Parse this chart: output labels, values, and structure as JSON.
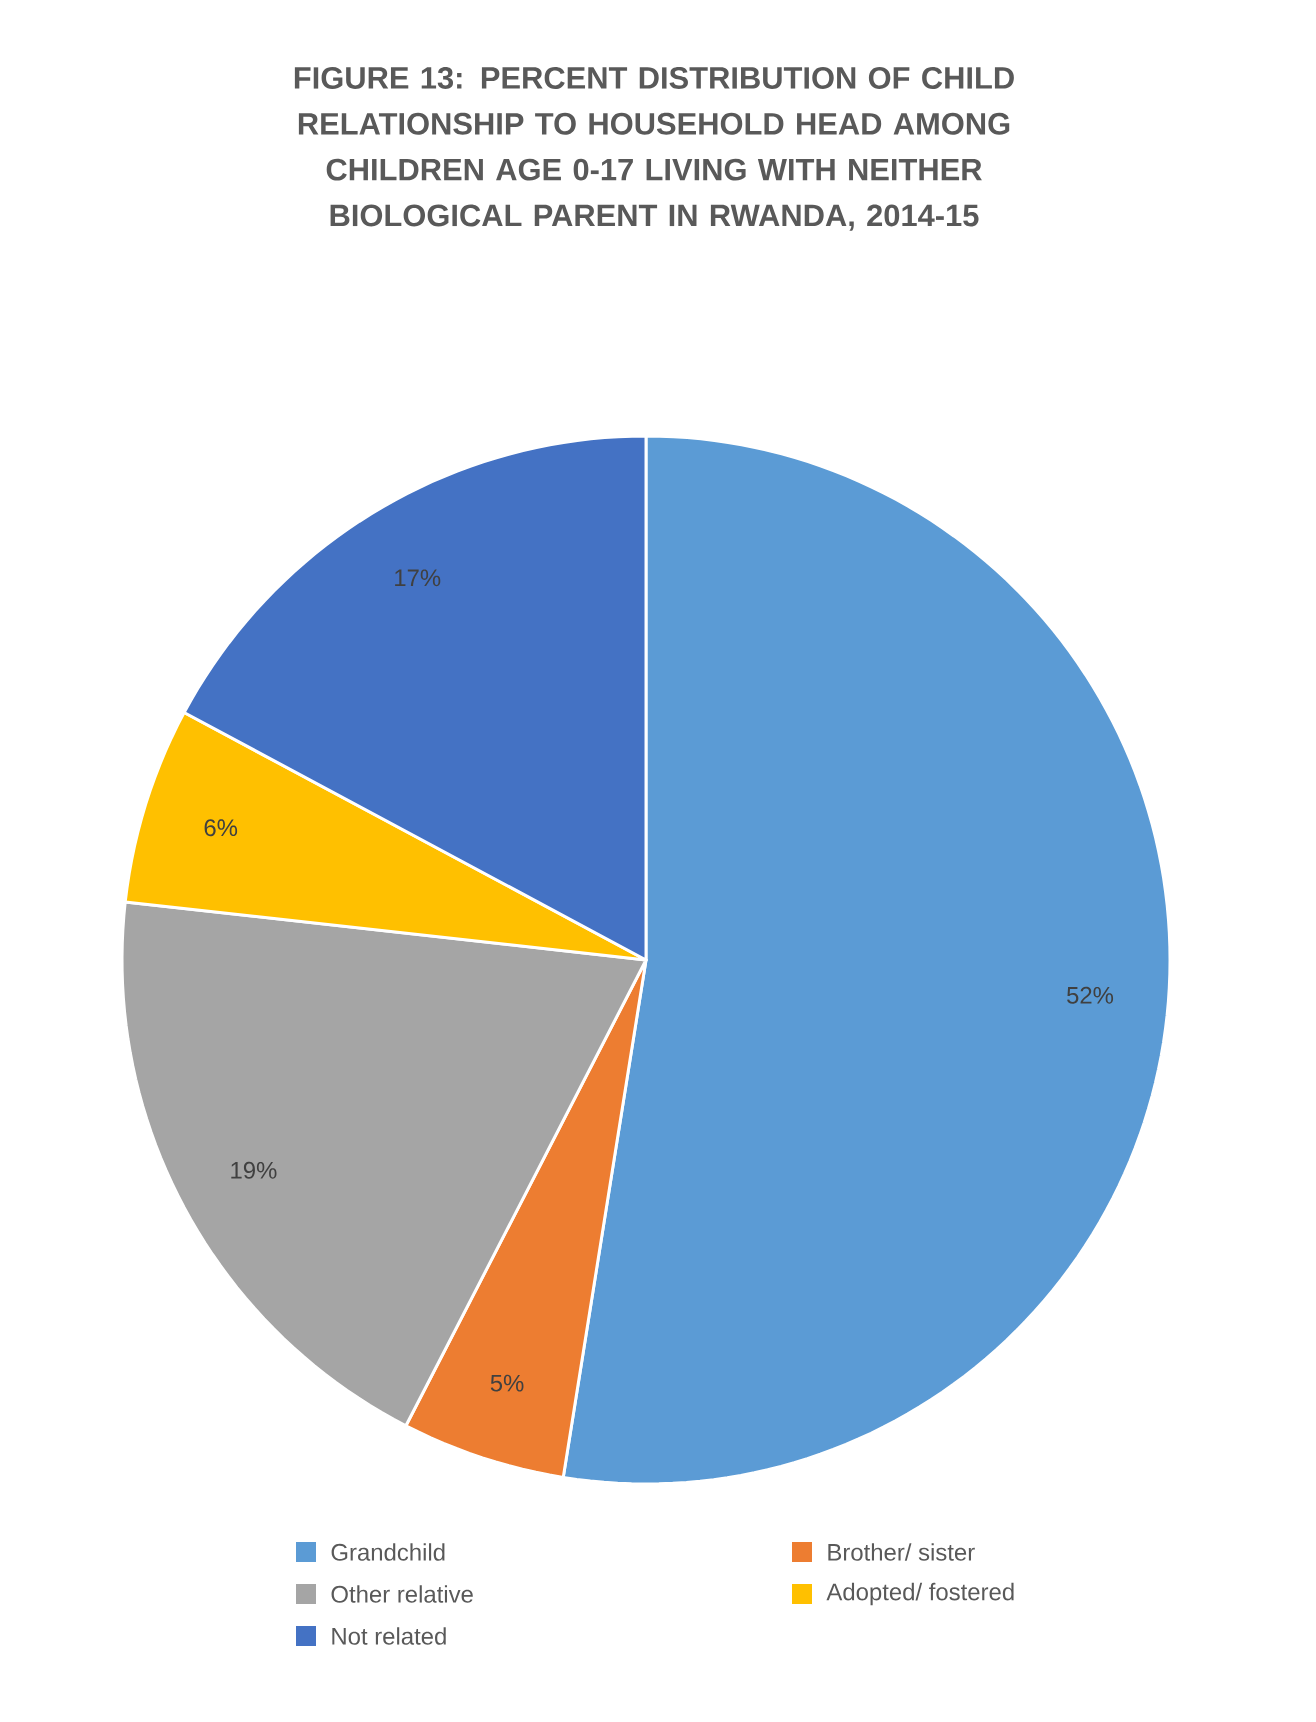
{
  "chart_data": {
    "type": "pie",
    "title": "FIGURE 13: PERCENT DISTRIBUTION OF CHILD RELATIONSHIP TO HOUSEHOLD HEAD AMONG CHILDREN AGE 0-17 LIVING WITH NEITHER BIOLOGICAL PARENT IN RWANDA, 2014-15",
    "categories": [
      "Grandchild",
      "Brother/ sister",
      "Other relative",
      "Adopted/ fostered",
      "Not related"
    ],
    "values": [
      52,
      5,
      19,
      6,
      17
    ],
    "value_labels": [
      "52%",
      "5%",
      "19%",
      "6%",
      "17%"
    ],
    "colors": [
      "#5b9bd5",
      "#ed7d31",
      "#a5a5a5",
      "#ffc000",
      "#4472c4"
    ],
    "legend": "bottom"
  }
}
